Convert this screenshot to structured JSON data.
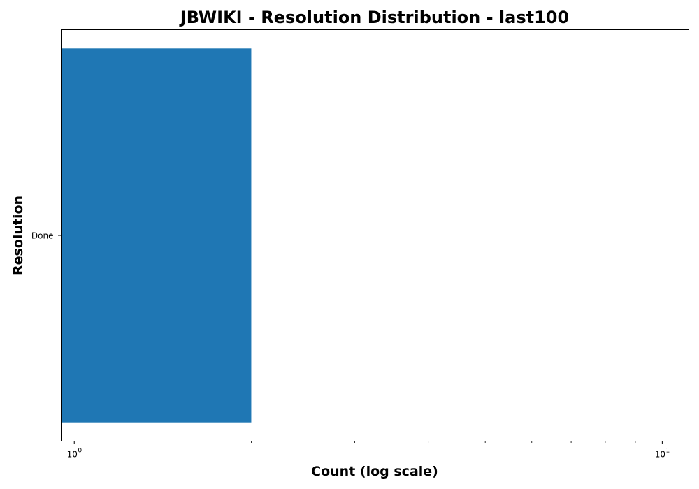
{
  "chart_data": {
    "type": "bar",
    "orientation": "horizontal",
    "title": "JBWIKI - Resolution Distribution - last100",
    "xlabel": "Count (log scale)",
    "ylabel": "Resolution",
    "x_scale": "log",
    "xlim": [
      0.95,
      11.1
    ],
    "categories": [
      "Done"
    ],
    "values": [
      2
    ],
    "x_ticks": [
      {
        "value": 1,
        "base": "10",
        "exponent": "0"
      },
      {
        "value": 10,
        "base": "10",
        "exponent": "1"
      }
    ],
    "grid": false,
    "legend": "none",
    "bar_color": "#1f77b4"
  }
}
